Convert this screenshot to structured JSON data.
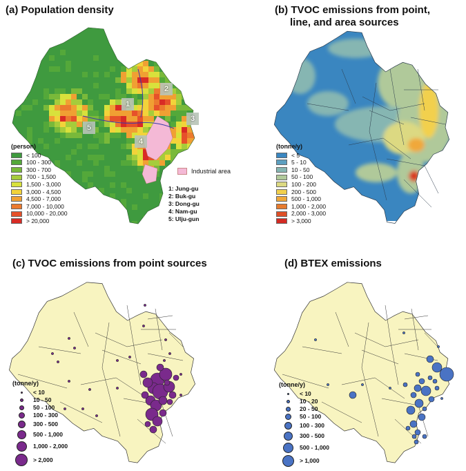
{
  "panels": {
    "a": {
      "title": "(a) Population density",
      "legend_title": "(person)",
      "legend": [
        {
          "label": "< 100",
          "color": "#3f9a3f"
        },
        {
          "label": "100 - 300",
          "color": "#54a83a"
        },
        {
          "label": "300 - 700",
          "color": "#79b93a"
        },
        {
          "label": "700 - 1,500",
          "color": "#a6cc3b"
        },
        {
          "label": "1,500 - 3,000",
          "color": "#d8e13c"
        },
        {
          "label": "3,000 - 4,500",
          "color": "#f2d33a"
        },
        {
          "label": "4,500 - 7,000",
          "color": "#f0a033"
        },
        {
          "label": "7,000 - 10,000",
          "color": "#ec7a2e"
        },
        {
          "label": "10,000 - 20,000",
          "color": "#e6512a"
        },
        {
          "label": "> 20,000",
          "color": "#d92b25"
        }
      ],
      "industrial_label": "Industrial area",
      "industrial_color": "#f4b9d6",
      "district_markers": [
        "1",
        "2",
        "3",
        "4",
        "5"
      ],
      "districts": [
        "1: Jung-gu",
        "2: Buk-gu",
        "3: Dong-gu",
        "4: Nam-gu",
        "5: Ulju-gun"
      ]
    },
    "b": {
      "title_line1": "(b) TVOC emissions from point,",
      "title_line2": "line, and area sources",
      "legend_title": "(tonne/y)",
      "legend": [
        {
          "label": "< 5",
          "color": "#3a86c0"
        },
        {
          "label": "5 - 10",
          "color": "#5c9fc0"
        },
        {
          "label": "10 - 50",
          "color": "#86b6b2"
        },
        {
          "label": "50 - 100",
          "color": "#b0c99a"
        },
        {
          "label": "100 - 200",
          "color": "#dcd982"
        },
        {
          "label": "200 - 500",
          "color": "#f2d04d"
        },
        {
          "label": "500 - 1,000",
          "color": "#f0a83a"
        },
        {
          "label": "1,000 - 2,000",
          "color": "#e77b2e"
        },
        {
          "label": "2,000 - 3,000",
          "color": "#de4f27"
        },
        {
          "label": "> 3,000",
          "color": "#d42a23"
        }
      ]
    },
    "c": {
      "title": "(c) TVOC emissions from point sources",
      "legend_title": "(tonne/y)",
      "symbol_color": "#7a2a8c",
      "legend": [
        "< 10",
        "10 - 50",
        "50 - 100",
        "100 - 300",
        "300 - 500",
        "500 - 1,000",
        "1,000 - 2,000",
        "> 2,000"
      ]
    },
    "d": {
      "title": "(d) BTEX emissions",
      "legend_title": "(tonne/y)",
      "symbol_color": "#4a73c4",
      "legend": [
        "< 10",
        "10 - 20",
        "20 - 50",
        "50 - 100",
        "100 - 300",
        "300 - 500",
        "500 - 1,000",
        "> 1,000"
      ]
    }
  },
  "base_map_color": "#f8f4c0"
}
